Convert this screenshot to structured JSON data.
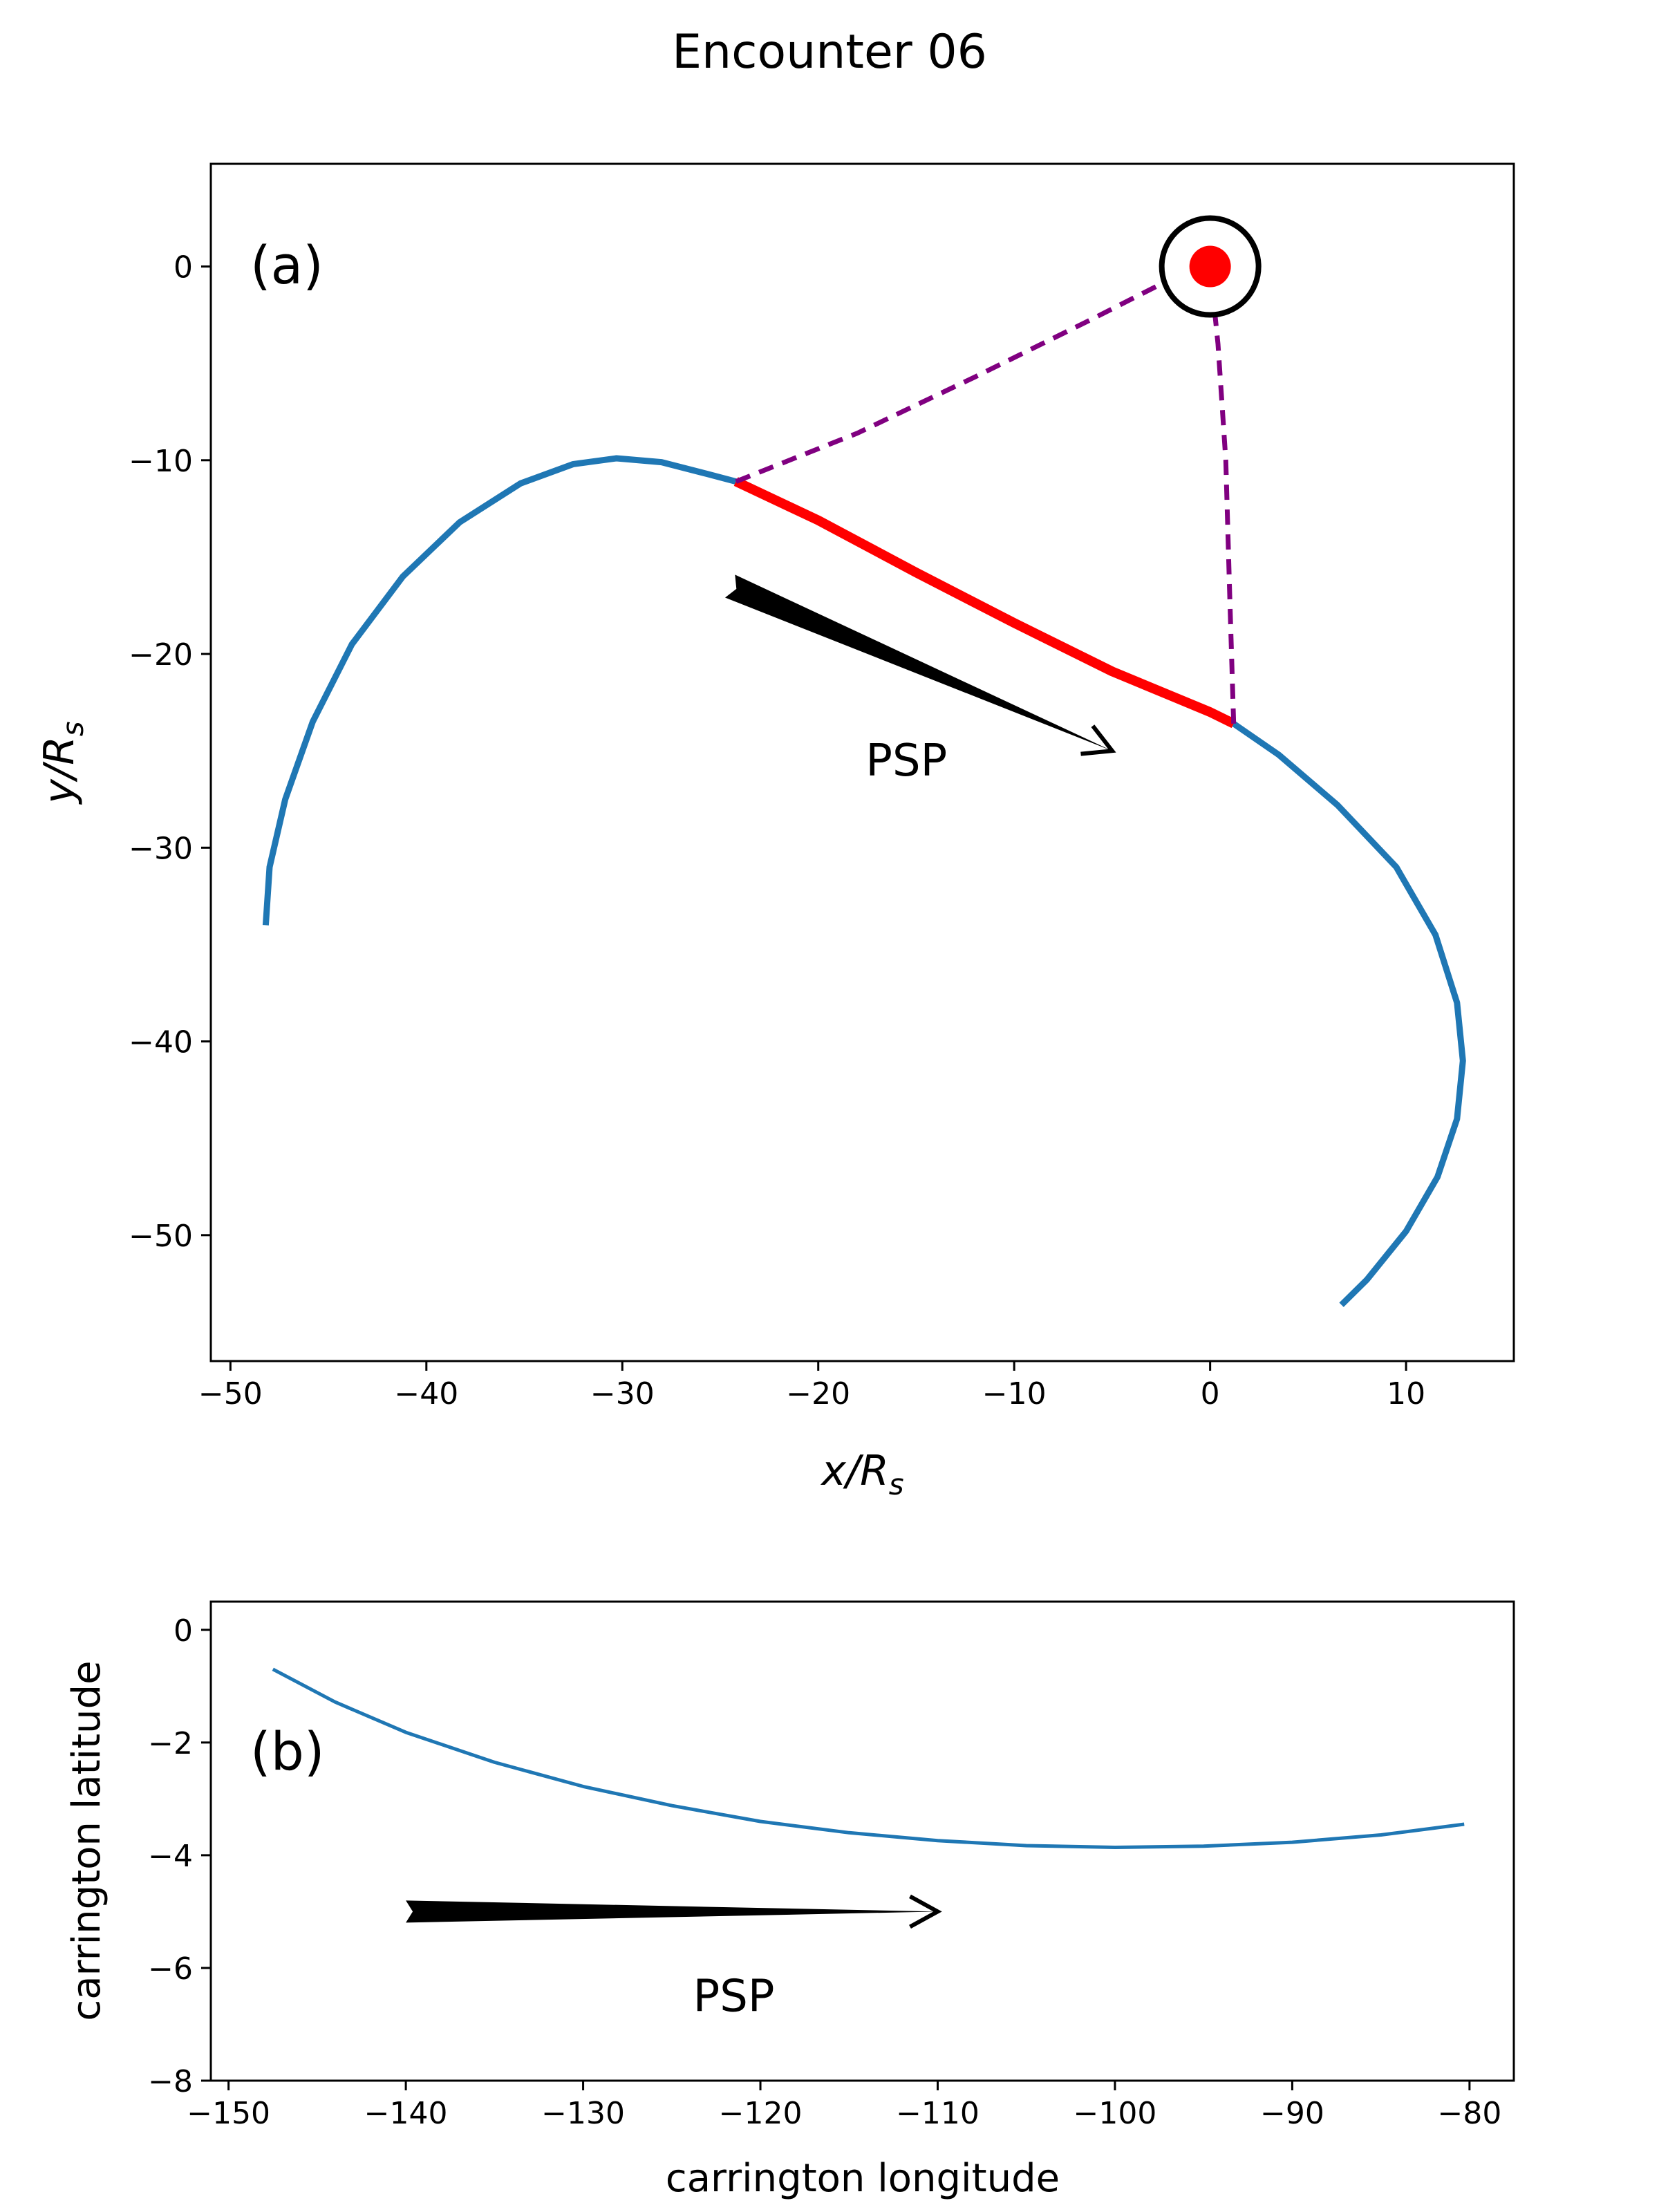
{
  "chart_data": [
    {
      "id": "a",
      "type": "line",
      "figure_title": "Encounter 06",
      "panel_label": "(a)",
      "xlabel": "x/R",
      "xlabel_sub": "s",
      "ylabel": "y/R",
      "ylabel_sub": "s",
      "xlim": [
        -51,
        15.5
      ],
      "ylim": [
        -56.5,
        5.3
      ],
      "xticks": [
        -50,
        -40,
        -30,
        -20,
        -10,
        0,
        10
      ],
      "yticks": [
        -50,
        -40,
        -30,
        -20,
        -10,
        0
      ],
      "xtick_labels": [
        "−50",
        "−40",
        "−30",
        "−20",
        "−10",
        "0",
        "10"
      ],
      "ytick_labels": [
        "−50",
        "−40",
        "−30",
        "−20",
        "−10",
        "0"
      ],
      "series": [
        {
          "name": "PSP trajectory",
          "color": "#1f77b4",
          "x": [
            -48.2,
            -48.0,
            -47.2,
            -45.8,
            -43.8,
            -41.2,
            -38.3,
            -35.2,
            -32.5,
            -30.3,
            -28.0,
            -25.7,
            -24.2,
            -20.0,
            -15.0,
            -10.0,
            -5.0,
            0.0,
            1.2,
            3.5,
            6.5,
            9.5,
            11.5,
            12.6,
            12.9,
            12.6,
            11.6,
            10.0,
            8.0,
            6.7
          ],
          "y": [
            -34.0,
            -31.0,
            -27.5,
            -23.5,
            -19.5,
            -16.0,
            -13.2,
            -11.2,
            -10.2,
            -9.9,
            -10.1,
            -10.7,
            -11.1,
            -13.1,
            -15.8,
            -18.4,
            -20.9,
            -23.0,
            -23.6,
            -25.2,
            -27.8,
            -31.0,
            -34.5,
            -38.0,
            -41.0,
            -44.0,
            -47.0,
            -49.8,
            -52.3,
            -53.6
          ]
        },
        {
          "name": "highlighted segment",
          "color": "#ff0000",
          "x": [
            -24.2,
            -20.0,
            -15.0,
            -10.0,
            -5.0,
            0.0,
            1.2
          ],
          "y": [
            -11.1,
            -13.1,
            -15.8,
            -18.4,
            -20.9,
            -23.0,
            -23.6
          ]
        },
        {
          "name": "field line to start",
          "color": "#800080",
          "style": "dashed",
          "x": [
            -24.2,
            -18.0,
            -12.0,
            -6.0,
            -2.5,
            0.0
          ],
          "y": [
            -11.1,
            -8.6,
            -5.7,
            -2.7,
            -0.9,
            0.0
          ]
        },
        {
          "name": "field line to end",
          "color": "#800080",
          "style": "dashed",
          "x": [
            1.2,
            1.0,
            0.8,
            0.4,
            0.0
          ],
          "y": [
            -23.6,
            -17.0,
            -10.0,
            -4.0,
            0.0
          ]
        }
      ],
      "sun": {
        "x": 0,
        "y": 0,
        "dot_color": "#ff0000",
        "ring_color": "#000000"
      },
      "arrow": {
        "label": "PSP",
        "x_start": -24.5,
        "y_start": -16.5,
        "x_end": -5.0,
        "y_end": -25.0,
        "label_x": -15.5,
        "label_y": -25.5,
        "color": "#000000"
      }
    },
    {
      "id": "b",
      "type": "line",
      "panel_label": "(b)",
      "xlabel": "carrington longitude",
      "ylabel": "carrington latitude",
      "xlim": [
        -151,
        -77.5
      ],
      "ylim": [
        -8,
        0.5
      ],
      "xticks": [
        -150,
        -140,
        -130,
        -120,
        -110,
        -100,
        -90,
        -80
      ],
      "yticks": [
        -8,
        -6,
        -4,
        -2,
        0
      ],
      "xtick_labels": [
        "−150",
        "−140",
        "−130",
        "−120",
        "−110",
        "−100",
        "−90",
        "−80"
      ],
      "ytick_labels": [
        "−8",
        "−6",
        "−4",
        "−2",
        "0"
      ],
      "series": [
        {
          "name": "PSP latitude",
          "color": "#1f77b4",
          "x": [
            -147.5,
            -144,
            -140,
            -135,
            -130,
            -125,
            -120,
            -115,
            -110,
            -105,
            -100,
            -95,
            -90,
            -85,
            -80.3
          ],
          "y": [
            -0.7,
            -1.28,
            -1.82,
            -2.35,
            -2.78,
            -3.12,
            -3.4,
            -3.6,
            -3.74,
            -3.83,
            -3.86,
            -3.84,
            -3.77,
            -3.64,
            -3.45
          ]
        }
      ],
      "arrow": {
        "label": "PSP",
        "x_start": -140,
        "y_start": -5.0,
        "x_end": -110,
        "y_end": -5.0,
        "label_x": -121.5,
        "label_y": -6.5,
        "color": "#000000"
      }
    }
  ]
}
